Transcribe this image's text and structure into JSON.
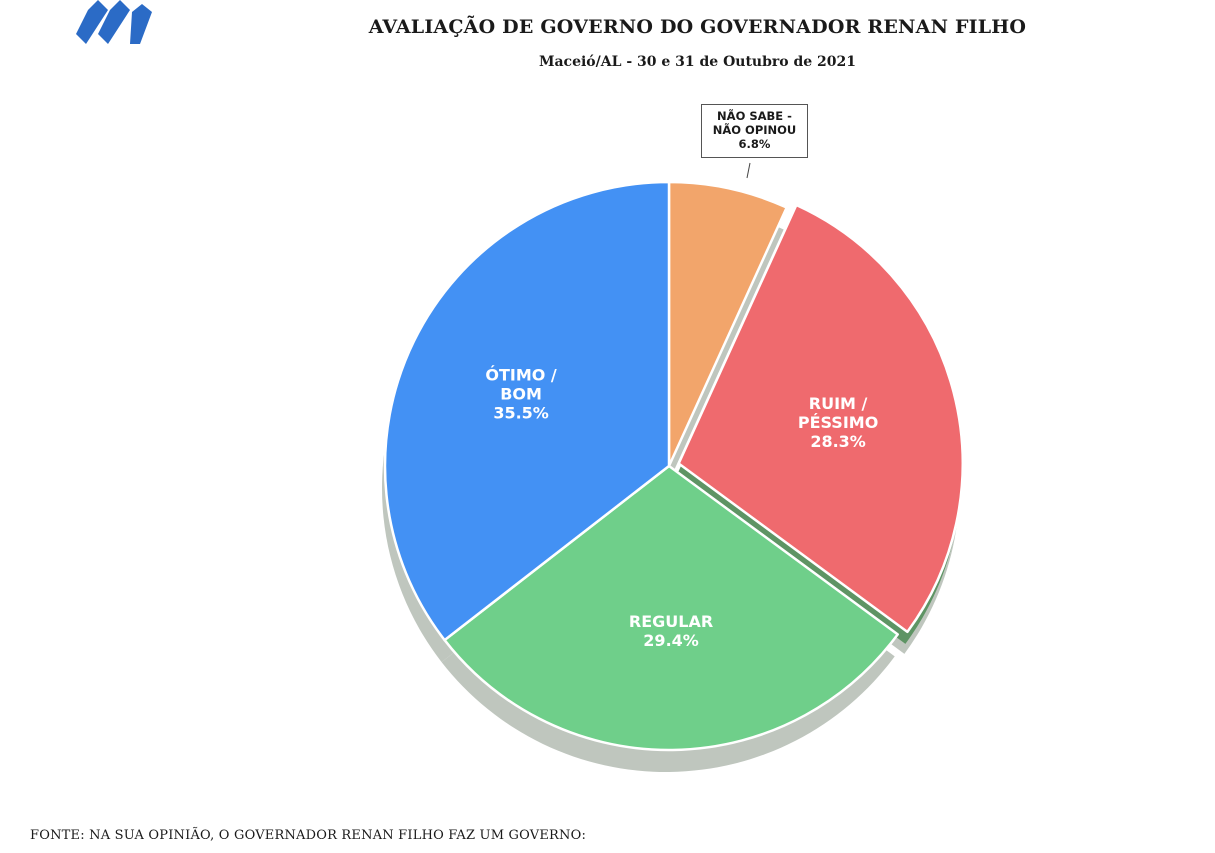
{
  "header": {
    "title": "AVALIAÇÃO DE GOVERNO DO GOVERNADOR RENAN FILHO",
    "subtitle": "Maceió/AL - 30 e 31 de Outubro de 2021"
  },
  "footer": {
    "source": "FONTE: NA SUA OPINIÃO, O GOVERNADOR RENAN FILHO FAZ UM GOVERNO:"
  },
  "chart_data": {
    "type": "pie",
    "title": "AVALIAÇÃO DE GOVERNO DO GOVERNADOR RENAN FILHO",
    "subtitle": "Maceió/AL - 30 e 31 de Outubro de 2021",
    "slices": [
      {
        "label_lines": [
          "NÃO SABE  -",
          "NÃO OPINOU"
        ],
        "value": 6.8,
        "value_label": "6.8%",
        "color": "#F2A56B",
        "label_style": "callout"
      },
      {
        "label_lines": [
          "RUIM /",
          "PÉSSIMO"
        ],
        "value": 28.3,
        "value_label": "28.3%",
        "color": "#EF6A6E",
        "exploded": true
      },
      {
        "label_lines": [
          "REGULAR"
        ],
        "value": 29.4,
        "value_label": "29.4%",
        "color": "#6FCF8A"
      },
      {
        "label_lines": [
          "ÓTIMO /",
          "BOM"
        ],
        "value": 35.5,
        "value_label": "35.5%",
        "color": "#4391F4"
      }
    ],
    "start": "top",
    "direction": "clockwise",
    "legend": "none"
  }
}
